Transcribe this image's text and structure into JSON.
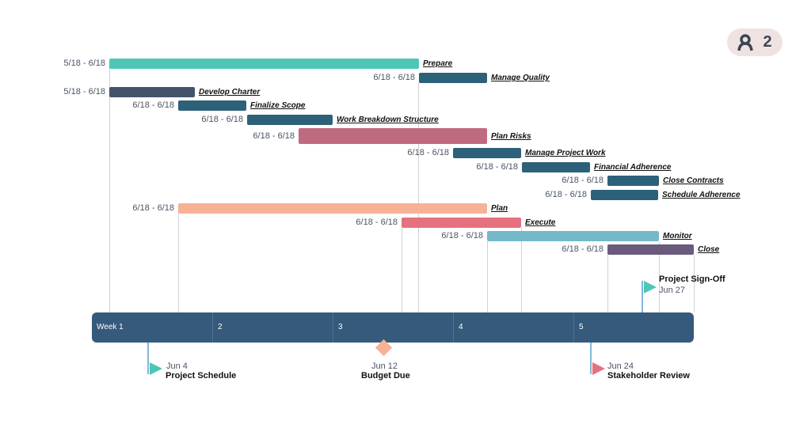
{
  "badge": {
    "icon": "user-icon",
    "count": "2"
  },
  "tasks": [
    {
      "name": "Prepare",
      "dates": "5/18 - 6/18",
      "color": "#4dc6b8"
    },
    {
      "name": "Manage Quality",
      "dates": "6/18 - 6/18",
      "color": "#2d6179"
    },
    {
      "name": "Develop Charter",
      "dates": "5/18 - 6/18",
      "color": "#43536c"
    },
    {
      "name": "Finalize Scope",
      "dates": "6/18 - 6/18",
      "color": "#2d6179"
    },
    {
      "name": "Work Breakdown Structure",
      "dates": "6/18 - 6/18",
      "color": "#2d6179"
    },
    {
      "name": "Plan Risks",
      "dates": "6/18 - 6/18",
      "color": "#c06a80"
    },
    {
      "name": "Manage Project Work",
      "dates": "6/18 - 6/18",
      "color": "#2d6179"
    },
    {
      "name": "Financial Adherence",
      "dates": "6/18 - 6/18",
      "color": "#2d6179"
    },
    {
      "name": "Close Contracts",
      "dates": "6/18 - 6/18",
      "color": "#2d6179"
    },
    {
      "name": "Schedule Adherence",
      "dates": "6/18 - 6/18",
      "color": "#2d6179"
    },
    {
      "name": "Plan",
      "dates": "6/18 - 6/18",
      "color": "#f7b195"
    },
    {
      "name": "Execute",
      "dates": "6/18 - 6/18",
      "color": "#e5717e"
    },
    {
      "name": "Monitor",
      "dates": "6/18 - 6/18",
      "color": "#74b9c9"
    },
    {
      "name": "Close",
      "dates": "6/18 - 6/18",
      "color": "#6a5a7c"
    }
  ],
  "axis": {
    "weeks": [
      "Week 1",
      "2",
      "3",
      "4",
      "5"
    ],
    "color": "#365a7b"
  },
  "milestones": [
    {
      "name": "Project Sign-Off",
      "date": "Jun 27",
      "shape": "flag",
      "color": "#4dc6b8"
    },
    {
      "name": "Project Schedule",
      "date": "Jun 4",
      "shape": "flag",
      "color": "#4dc6b8"
    },
    {
      "name": "Budget Due",
      "date": "Jun 12",
      "shape": "diamond",
      "color": "#f7b195"
    },
    {
      "name": "Stakeholder Review",
      "date": "Jun 24",
      "shape": "flag",
      "color": "#e5717e"
    }
  ]
}
